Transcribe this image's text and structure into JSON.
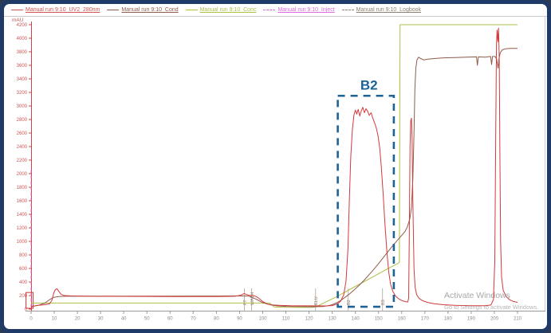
{
  "legend": {
    "items": [
      {
        "label": "Manual run 9:10_UV2_280nm",
        "color": "#d05252",
        "line": "solid"
      },
      {
        "label": "Manual run 9:10_Cond",
        "color": "#8f5b4b",
        "line": "solid"
      },
      {
        "label": "Manual run 9:10_Conc",
        "color": "#aebf44",
        "line": "solid"
      },
      {
        "label": "Manual run 9:10_Inject",
        "color": "#d96cd9",
        "line": "dashed"
      },
      {
        "label": "Manual run 9:10_Logbook",
        "color": "#8a8070",
        "line": "dashed"
      }
    ]
  },
  "watermark": {
    "line1": "Activate Windows",
    "line2": "Go to Settings to activate Windows."
  },
  "chart_data": {
    "type": "line",
    "title": "",
    "x_axis": {
      "min": 0,
      "max": 210,
      "tick_step": 10,
      "label_color": "#8a8a8a",
      "axis_color": "#9a9a9a"
    },
    "y_axis": {
      "unit": "mAU",
      "min": 0,
      "max": 4200,
      "tick_step": 200,
      "label_color": "#cc5555",
      "axis_color": "#cc4444"
    },
    "grid": false,
    "legend_position": "top",
    "series": [
      {
        "name": "UV2_280nm",
        "color": "#d23b3b",
        "style": "solid",
        "width": 1,
        "points": [
          [
            0,
            35
          ],
          [
            1,
            45
          ],
          [
            3,
            55
          ],
          [
            6,
            65
          ],
          [
            8,
            80
          ],
          [
            9,
            130
          ],
          [
            9.8,
            240
          ],
          [
            10.5,
            290
          ],
          [
            11.2,
            300
          ],
          [
            12,
            260
          ],
          [
            13,
            215
          ],
          [
            14.5,
            200
          ],
          [
            17,
            195
          ],
          [
            25,
            190
          ],
          [
            40,
            188
          ],
          [
            60,
            186
          ],
          [
            80,
            186
          ],
          [
            88,
            190
          ],
          [
            90.5,
            205
          ],
          [
            92,
            230
          ],
          [
            93,
            215
          ],
          [
            94.5,
            200
          ],
          [
            96.5,
            195
          ],
          [
            98,
            170
          ],
          [
            100,
            110
          ],
          [
            102,
            75
          ],
          [
            104,
            62
          ],
          [
            107,
            55
          ],
          [
            112,
            50
          ],
          [
            120,
            48
          ],
          [
            127,
            47
          ],
          [
            130,
            52
          ],
          [
            132,
            75
          ],
          [
            133.5,
            110
          ],
          [
            135,
            210
          ],
          [
            136,
            420
          ],
          [
            136.8,
            900
          ],
          [
            137.4,
            1600
          ],
          [
            138,
            2250
          ],
          [
            138.7,
            2650
          ],
          [
            139.4,
            2870
          ],
          [
            140,
            2940
          ],
          [
            140.6,
            2880
          ],
          [
            141.2,
            2950
          ],
          [
            141.9,
            2850
          ],
          [
            142.5,
            2920
          ],
          [
            143.2,
            2980
          ],
          [
            143.9,
            2900
          ],
          [
            144.6,
            2960
          ],
          [
            145.3,
            2920
          ],
          [
            146,
            2860
          ],
          [
            146.8,
            2900
          ],
          [
            147.5,
            2820
          ],
          [
            148.2,
            2760
          ],
          [
            149,
            2680
          ],
          [
            149.8,
            2560
          ],
          [
            150.5,
            2380
          ],
          [
            151.2,
            2100
          ],
          [
            152,
            1700
          ],
          [
            152.8,
            1250
          ],
          [
            153.6,
            850
          ],
          [
            154.4,
            550
          ],
          [
            155.2,
            370
          ],
          [
            156.2,
            260
          ],
          [
            157.4,
            190
          ],
          [
            158.8,
            150
          ],
          [
            160.2,
            125
          ],
          [
            161.6,
            110
          ],
          [
            162.6,
            105
          ],
          [
            163,
            160
          ],
          [
            163.3,
            1100
          ],
          [
            163.6,
            2400
          ],
          [
            163.9,
            2780
          ],
          [
            164.2,
            2820
          ],
          [
            164.5,
            2500
          ],
          [
            164.9,
            1400
          ],
          [
            165.3,
            600
          ],
          [
            165.8,
            320
          ],
          [
            166.5,
            210
          ],
          [
            167.5,
            160
          ],
          [
            169,
            125
          ],
          [
            171,
            100
          ],
          [
            174,
            80
          ],
          [
            178,
            65
          ],
          [
            183,
            55
          ],
          [
            190,
            50
          ],
          [
            196,
            50
          ],
          [
            198.5,
            60
          ],
          [
            199.6,
            140
          ],
          [
            200.2,
            700
          ],
          [
            200.6,
            2600
          ],
          [
            200.9,
            3900
          ],
          [
            201.2,
            4120
          ],
          [
            201.5,
            3950
          ],
          [
            201.8,
            4150
          ],
          [
            202.1,
            3700
          ],
          [
            202.4,
            2300
          ],
          [
            202.7,
            1000
          ],
          [
            203.1,
            480
          ],
          [
            203.8,
            280
          ],
          [
            205,
            190
          ],
          [
            206.5,
            140
          ],
          [
            208,
            115
          ],
          [
            210,
            100
          ]
        ]
      },
      {
        "name": "Cond",
        "color": "#8f5b4b",
        "style": "solid",
        "width": 1,
        "points": [
          [
            0,
            35
          ],
          [
            3,
            55
          ],
          [
            6,
            90
          ],
          [
            8,
            140
          ],
          [
            10,
            175
          ],
          [
            12,
            185
          ],
          [
            15,
            190
          ],
          [
            25,
            192
          ],
          [
            50,
            192
          ],
          [
            80,
            193
          ],
          [
            90,
            195
          ],
          [
            94,
            193
          ],
          [
            97,
            150
          ],
          [
            100,
            95
          ],
          [
            103,
            65
          ],
          [
            106,
            48
          ],
          [
            110,
            40
          ],
          [
            116,
            36
          ],
          [
            122,
            35
          ],
          [
            126,
            38
          ],
          [
            128,
            48
          ],
          [
            130,
            65
          ],
          [
            132,
            95
          ],
          [
            134,
            135
          ],
          [
            136,
            185
          ],
          [
            138,
            240
          ],
          [
            140,
            300
          ],
          [
            142,
            365
          ],
          [
            144,
            435
          ],
          [
            146,
            510
          ],
          [
            148,
            590
          ],
          [
            150,
            672
          ],
          [
            152,
            758
          ],
          [
            154,
            845
          ],
          [
            156,
            930
          ],
          [
            158,
            1010
          ],
          [
            160,
            1090
          ],
          [
            161.5,
            1150
          ],
          [
            162.5,
            1220
          ],
          [
            163.5,
            1330
          ],
          [
            164.2,
            1500
          ],
          [
            164.8,
            1900
          ],
          [
            165.3,
            2600
          ],
          [
            165.7,
            3250
          ],
          [
            166.1,
            3560
          ],
          [
            166.6,
            3680
          ],
          [
            167.3,
            3720
          ],
          [
            168.2,
            3700
          ],
          [
            169.5,
            3680
          ],
          [
            171,
            3690
          ],
          [
            174,
            3700
          ],
          [
            178,
            3710
          ],
          [
            183,
            3715
          ],
          [
            188,
            3720
          ],
          [
            192.3,
            3725
          ],
          [
            192.7,
            3600
          ],
          [
            193.1,
            3725
          ],
          [
            196,
            3720
          ],
          [
            198.4,
            3730
          ],
          [
            198.8,
            3610
          ],
          [
            199.2,
            3730
          ],
          [
            200.3,
            3730
          ],
          [
            201,
            3690
          ],
          [
            201.6,
            3560
          ],
          [
            202,
            3700
          ],
          [
            202.6,
            3790
          ],
          [
            203.5,
            3830
          ],
          [
            205,
            3845
          ],
          [
            207,
            3850
          ],
          [
            210,
            3850
          ]
        ]
      },
      {
        "name": "Conc",
        "color": "#aebf44",
        "style": "solid",
        "width": 1,
        "points": [
          [
            0,
            90
          ],
          [
            40,
            90
          ],
          [
            80,
            90
          ],
          [
            103,
            90
          ],
          [
            105,
            30
          ],
          [
            110,
            26
          ],
          [
            121,
            25
          ],
          [
            122.8,
            30
          ],
          [
            126,
            85
          ],
          [
            132,
            185
          ],
          [
            140,
            335
          ],
          [
            148,
            485
          ],
          [
            155,
            615
          ],
          [
            158.5,
            675
          ],
          [
            159,
            695
          ],
          [
            159.3,
            4200
          ],
          [
            180,
            4200
          ],
          [
            210,
            4200
          ]
        ]
      },
      {
        "name": "Inject",
        "color": "#d96cd9",
        "style": "dashed",
        "width": 1,
        "points": [
          [
            0,
            30
          ],
          [
            0,
            2070
          ]
        ]
      }
    ],
    "logbook_marks": [
      {
        "x": 92.1,
        "label": "FT"
      },
      {
        "x": 95.2,
        "label": "WASH"
      },
      {
        "x": 122.8,
        "label": "ELU"
      },
      {
        "x": 136.9,
        "label": "B2"
      },
      {
        "x": 151.7,
        "label": "B3"
      }
    ],
    "annotation": {
      "label": "B2",
      "color": "#1c6398",
      "box_x": [
        132.4,
        156.6
      ],
      "box_y": [
        35,
        3150
      ]
    },
    "marker_box": {
      "color": "#cc3333",
      "x": [
        -2.2,
        0.9
      ],
      "y": [
        12,
        245
      ]
    }
  }
}
